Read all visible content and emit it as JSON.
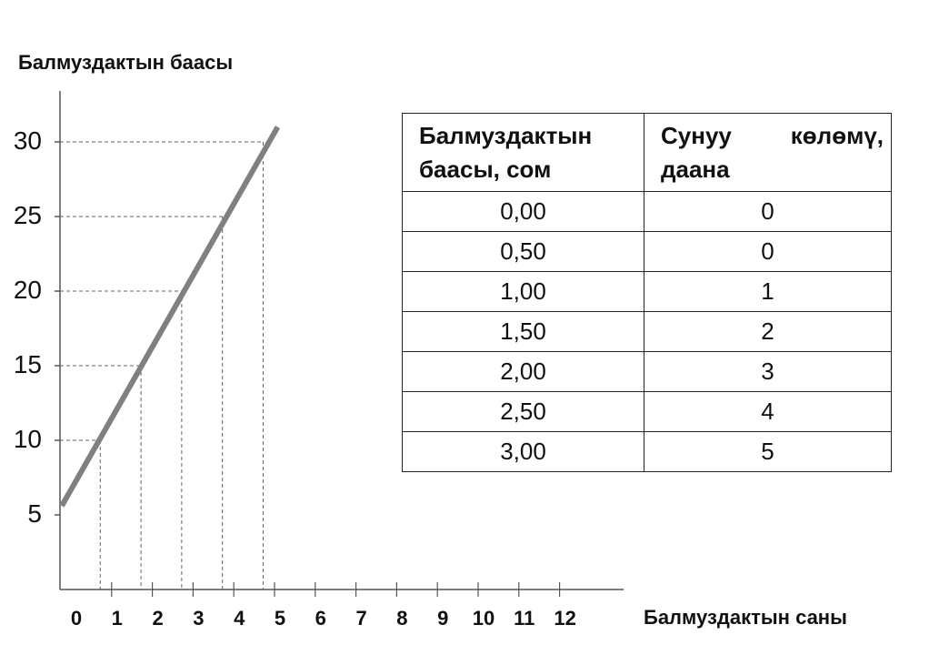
{
  "chart_data": {
    "type": "line",
    "ylabel": "Балмуздактын баасы",
    "xlabel": "Балмуздактын саны",
    "y_ticks": [
      "5",
      "10",
      "15",
      "20",
      "25",
      "30"
    ],
    "x_ticks": [
      "0",
      "1",
      "2",
      "3",
      "4",
      "5",
      "6",
      "7",
      "8",
      "9",
      "10",
      "11",
      "12"
    ],
    "line_color": "#808080",
    "line": {
      "x": [
        0,
        5.3
      ],
      "y": [
        5,
        31
      ]
    },
    "guides": [
      {
        "x": 1.1,
        "y": 10
      },
      {
        "x": 2.1,
        "y": 15
      },
      {
        "x": 3.1,
        "y": 20
      },
      {
        "x": 4.1,
        "y": 25
      },
      {
        "x": 5.1,
        "y": 30
      }
    ]
  },
  "table": {
    "headers": [
      "Балмуздактын баасы, сом",
      "Сунуу көлөмү, даана"
    ],
    "rows": [
      [
        "0,00",
        "0"
      ],
      [
        "0,50",
        "0"
      ],
      [
        "1,00",
        "1"
      ],
      [
        "1,50",
        "2"
      ],
      [
        "2,00",
        "3"
      ],
      [
        "2,50",
        "4"
      ],
      [
        "3,00",
        "5"
      ]
    ]
  }
}
